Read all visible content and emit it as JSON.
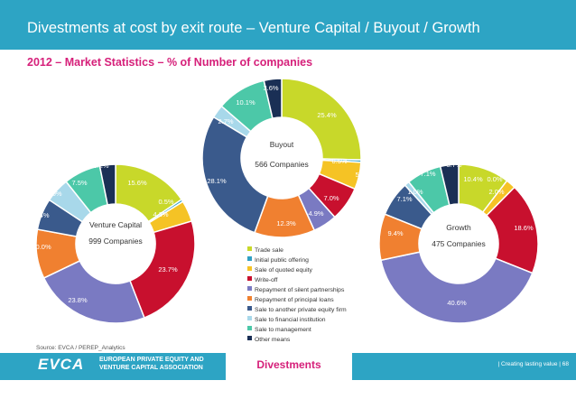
{
  "header": {
    "title": "Divestments at cost by exit route – Venture Capital / Buyout / Growth",
    "subtitle": "2012 – Market Statistics – % of Number of companies"
  },
  "colors": {
    "accent": "#2da4c4",
    "magenta": "#d6207a",
    "routes": [
      "#c8d82a",
      "#2fa0c4",
      "#f5c325",
      "#c8102e",
      "#7a7ac2",
      "#f08030",
      "#3a5a8c",
      "#a8d8ea",
      "#4cc8a8",
      "#1a2f55"
    ]
  },
  "legend": {
    "items": [
      "Trade sale",
      "Initial public offering",
      "Sale of quoted equity",
      "Write-off",
      "Repayment of silent partnerships",
      "Repayment of principal loans",
      "Sale to another private equity firm",
      "Sale to financial institution",
      "Sale to management",
      "Other means"
    ]
  },
  "chart_data": [
    {
      "type": "pie",
      "name": "Venture Capital",
      "title": "Venture Capital",
      "count_label": "999 Companies",
      "categories": [
        "Trade sale",
        "Initial public offering",
        "Sale of quoted equity",
        "Write-off",
        "Repayment of silent partnerships",
        "Repayment of principal loans",
        "Sale to another private equity firm",
        "Sale to financial institution",
        "Sale to management",
        "Other means"
      ],
      "values": [
        15.6,
        0.5,
        4.3,
        23.7,
        23.8,
        10.0,
        6.4,
        5.0,
        7.5,
        3.2
      ],
      "labels": [
        "15.6%",
        "0.5%",
        "4.3%",
        "23.7%",
        "23.8%",
        "10.0%",
        "6.4%",
        "5.0%",
        "7.5%",
        "3.2%"
      ]
    },
    {
      "type": "pie",
      "name": "Buyout",
      "title": "Buyout",
      "count_label": "566 Companies",
      "categories": [
        "Trade sale",
        "Initial public offering",
        "Sale of quoted equity",
        "Write-off",
        "Repayment of silent partnerships",
        "Repayment of principal loans",
        "Sale to another private equity firm",
        "Sale to financial institution",
        "Sale to management",
        "Other means"
      ],
      "values": [
        25.4,
        0.5,
        5.5,
        7.0,
        4.9,
        12.3,
        28.1,
        2.7,
        10.1,
        3.6
      ],
      "labels": [
        "25.4%",
        "0.5%",
        "5.5%",
        "7.0%",
        "4.9%",
        "12.3%",
        "28.1%",
        "2.7%",
        "10.1%",
        "3.6%"
      ]
    },
    {
      "type": "pie",
      "name": "Growth",
      "title": "Growth",
      "count_label": "475 Companies",
      "categories": [
        "Trade sale",
        "Initial public offering",
        "Sale of quoted equity",
        "Write-off",
        "Repayment of silent partnerships",
        "Repayment of principal loans",
        "Sale to another private equity firm",
        "Sale to financial institution",
        "Sale to management",
        "Other means"
      ],
      "values": [
        10.4,
        0.0,
        2.0,
        18.6,
        40.6,
        9.4,
        7.1,
        1.0,
        7.1,
        3.7
      ],
      "labels": [
        "10.4%",
        "0.0%",
        "2.0%",
        "18.6%",
        "40.6%",
        "9.4%",
        "7.1%",
        "1.0%",
        "7.1%",
        "3.7%"
      ]
    }
  ],
  "footer": {
    "source": "Source: EVCA / PEREP_Analytics",
    "logo_mark": "EVCA",
    "logo_line1": "EUROPEAN PRIVATE EQUITY AND",
    "logo_line2": "VENTURE CAPITAL ASSOCIATION",
    "section_label": "Divestments",
    "slogan": "| Creating lasting value | 68"
  }
}
